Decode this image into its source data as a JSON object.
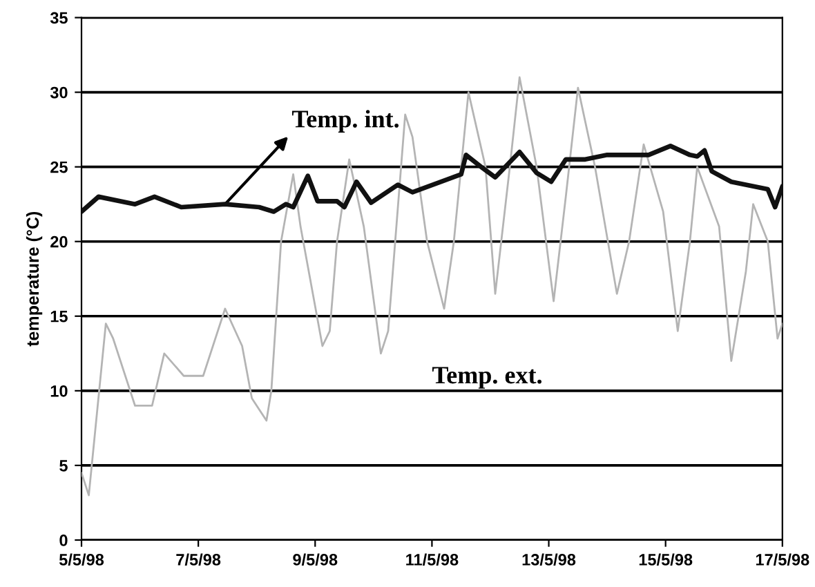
{
  "chart_data": {
    "type": "line",
    "ylabel": "temperature (°C)",
    "xlim": [
      "1998-05-05",
      "1998-05-17"
    ],
    "xticks": [
      {
        "value": "1998-05-05",
        "label": "5/5/98"
      },
      {
        "value": "1998-05-07",
        "label": "7/5/98"
      },
      {
        "value": "1998-05-09",
        "label": "9/5/98"
      },
      {
        "value": "1998-05-11",
        "label": "11/5/98"
      },
      {
        "value": "1998-05-13",
        "label": "13/5/98"
      },
      {
        "value": "1998-05-15",
        "label": "15/5/98"
      },
      {
        "value": "1998-05-17",
        "label": "17/5/98"
      }
    ],
    "ylim": [
      0,
      35
    ],
    "yticks": [
      0,
      5,
      10,
      15,
      20,
      25,
      30,
      35
    ],
    "grid": "y",
    "legend": false,
    "marker": "none",
    "line_style": "solid",
    "series": [
      {
        "name": "Temp. ext.",
        "color": "#b4b4b4",
        "x": [
          "1998-05-05T00:00",
          "1998-05-05T03:00",
          "1998-05-05T10:00",
          "1998-05-05T13:00",
          "1998-05-05T22:00",
          "1998-05-06T05:00",
          "1998-05-06T10:00",
          "1998-05-06T18:00",
          "1998-05-07T02:00",
          "1998-05-07T11:00",
          "1998-05-07T18:00",
          "1998-05-07T22:00",
          "1998-05-08T04:00",
          "1998-05-08T06:00",
          "1998-05-08T10:00",
          "1998-05-08T15:00",
          "1998-05-08T18:00",
          "1998-05-09T03:00",
          "1998-05-09T06:00",
          "1998-05-09T09:00",
          "1998-05-09T14:00",
          "1998-05-09T20:00",
          "1998-05-10T03:00",
          "1998-05-10T06:00",
          "1998-05-10T13:00",
          "1998-05-10T16:00",
          "1998-05-10T22:00",
          "1998-05-11T05:00",
          "1998-05-11T09:00",
          "1998-05-11T15:00",
          "1998-05-11T22:00",
          "1998-05-12T02:00",
          "1998-05-12T08:00",
          "1998-05-12T12:00",
          "1998-05-12T19:00",
          "1998-05-13T02:00",
          "1998-05-13T07:00",
          "1998-05-13T12:00",
          "1998-05-13T19:00",
          "1998-05-14T04:00",
          "1998-05-14T09:00",
          "1998-05-14T15:00",
          "1998-05-14T23:00",
          "1998-05-15T05:00",
          "1998-05-15T10:00",
          "1998-05-15T13:00",
          "1998-05-15T22:00",
          "1998-05-16T03:00",
          "1998-05-16T09:00",
          "1998-05-16T12:00",
          "1998-05-16T18:00",
          "1998-05-16T22:00",
          "1998-05-17T00:00"
        ],
        "values": [
          4.5,
          3,
          14.5,
          13.5,
          9,
          9,
          12.5,
          11,
          11,
          15.5,
          13,
          9.5,
          8,
          10,
          20,
          24.5,
          21,
          13,
          14,
          20,
          25.5,
          21,
          12.5,
          14,
          28.5,
          27,
          20,
          15.5,
          20,
          30,
          25,
          16.5,
          25,
          31,
          25,
          16,
          23,
          30.3,
          25,
          16.5,
          20,
          26.5,
          22,
          14,
          20,
          25,
          21,
          12,
          18,
          22.5,
          20,
          13.5,
          14.5
        ]
      },
      {
        "name": "Temp. int.",
        "color": "#111111",
        "x": [
          "1998-05-05T00:00",
          "1998-05-05T07:00",
          "1998-05-05T22:00",
          "1998-05-06T06:00",
          "1998-05-06T17:00",
          "1998-05-07T11:00",
          "1998-05-08T01:00",
          "1998-05-08T07:00",
          "1998-05-08T12:00",
          "1998-05-08T15:00",
          "1998-05-08T21:00",
          "1998-05-09T01:00",
          "1998-05-09T09:00",
          "1998-05-09T12:00",
          "1998-05-09T17:00",
          "1998-05-09T23:00",
          "1998-05-10T10:00",
          "1998-05-10T16:00",
          "1998-05-11T12:00",
          "1998-05-11T14:00",
          "1998-05-11T21:00",
          "1998-05-12T02:00",
          "1998-05-12T12:00",
          "1998-05-12T19:00",
          "1998-05-13T01:00",
          "1998-05-13T07:00",
          "1998-05-13T15:00",
          "1998-05-14T00:00",
          "1998-05-14T17:00",
          "1998-05-15T02:00",
          "1998-05-15T10:00",
          "1998-05-15T13:00",
          "1998-05-15T16:00",
          "1998-05-15T19:00",
          "1998-05-16T03:00",
          "1998-05-16T18:00",
          "1998-05-16T21:00",
          "1998-05-17T00:00"
        ],
        "values": [
          22,
          23,
          22.5,
          23,
          22.3,
          22.5,
          22.3,
          22,
          22.5,
          22.3,
          24.4,
          22.7,
          22.7,
          22.3,
          24,
          22.6,
          23.8,
          23.3,
          24.5,
          25.8,
          24.9,
          24.3,
          26,
          24.6,
          24,
          25.5,
          25.5,
          25.8,
          25.8,
          26.4,
          25.8,
          25.7,
          26.1,
          24.7,
          24,
          23.5,
          22.3,
          23.7
        ]
      }
    ]
  }
}
